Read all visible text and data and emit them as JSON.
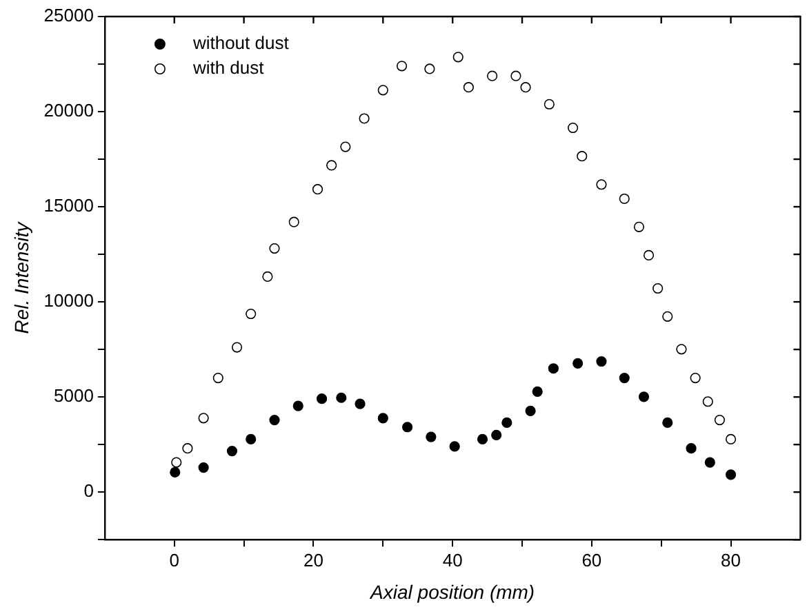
{
  "chart_data": {
    "type": "scatter",
    "xlabel": "Axial position (mm)",
    "ylabel": "Rel. Intensity",
    "xlim": [
      -10,
      90
    ],
    "xticks": [
      0,
      {
        "value": 10,
        "label": null
      },
      20,
      {
        "value": 30,
        "label": null
      },
      40,
      {
        "value": 50,
        "label": null
      },
      60,
      {
        "value": 70,
        "label": null
      },
      80
    ],
    "ylim": [
      -2500,
      25000
    ],
    "yticks": [
      {
        "value": -2500,
        "label": null
      },
      0,
      {
        "value": 2500,
        "label": null
      },
      5000,
      {
        "value": 7500,
        "label": null
      },
      10000,
      {
        "value": 12500,
        "label": null
      },
      15000,
      {
        "value": 17500,
        "label": null
      },
      20000,
      {
        "value": 22500,
        "label": null
      },
      25000
    ],
    "grid": false,
    "legend": "top left",
    "marker": "circle",
    "series": [
      {
        "name": "without dust",
        "color": "#000000",
        "x": [
          0.1,
          4.2,
          8.3,
          11,
          14.4,
          17.8,
          21.2,
          24,
          26.7,
          30,
          33.5,
          36.9,
          40.3,
          44.3,
          46.3,
          47.8,
          51.2,
          52.2,
          54.5,
          58,
          61.4,
          64.7,
          67.5,
          70.9,
          74.3,
          77,
          80
        ],
        "values": [
          1040,
          1290,
          2160,
          2780,
          3790,
          4530,
          4910,
          4960,
          4640,
          3890,
          3420,
          2900,
          2400,
          2780,
          3000,
          3650,
          4270,
          5280,
          6500,
          6770,
          6870,
          6000,
          5010,
          3650,
          2300,
          1560,
          920
        ]
      },
      {
        "name": "with dust",
        "color": "#ffffff",
        "x": [
          0.3,
          1.9,
          4.2,
          6.3,
          9,
          11,
          13.4,
          14.4,
          17.2,
          20.6,
          22.6,
          24.6,
          27.3,
          30,
          32.7,
          36.7,
          40.8,
          42.3,
          45.7,
          49.1,
          50.5,
          53.9,
          57.3,
          58.6,
          61.4,
          64.7,
          66.8,
          68.2,
          69.5,
          70.9,
          72.9,
          74.9,
          76.7,
          78.4,
          80
        ],
        "values": [
          1560,
          2300,
          3890,
          6000,
          7610,
          9370,
          11330,
          12810,
          14200,
          15920,
          17180,
          18150,
          19640,
          21130,
          22400,
          22250,
          22870,
          21280,
          21880,
          21880,
          21280,
          20390,
          19150,
          17660,
          16170,
          15420,
          13940,
          12450,
          10710,
          9230,
          7510,
          6000,
          4760,
          3790,
          2780
        ]
      }
    ]
  }
}
